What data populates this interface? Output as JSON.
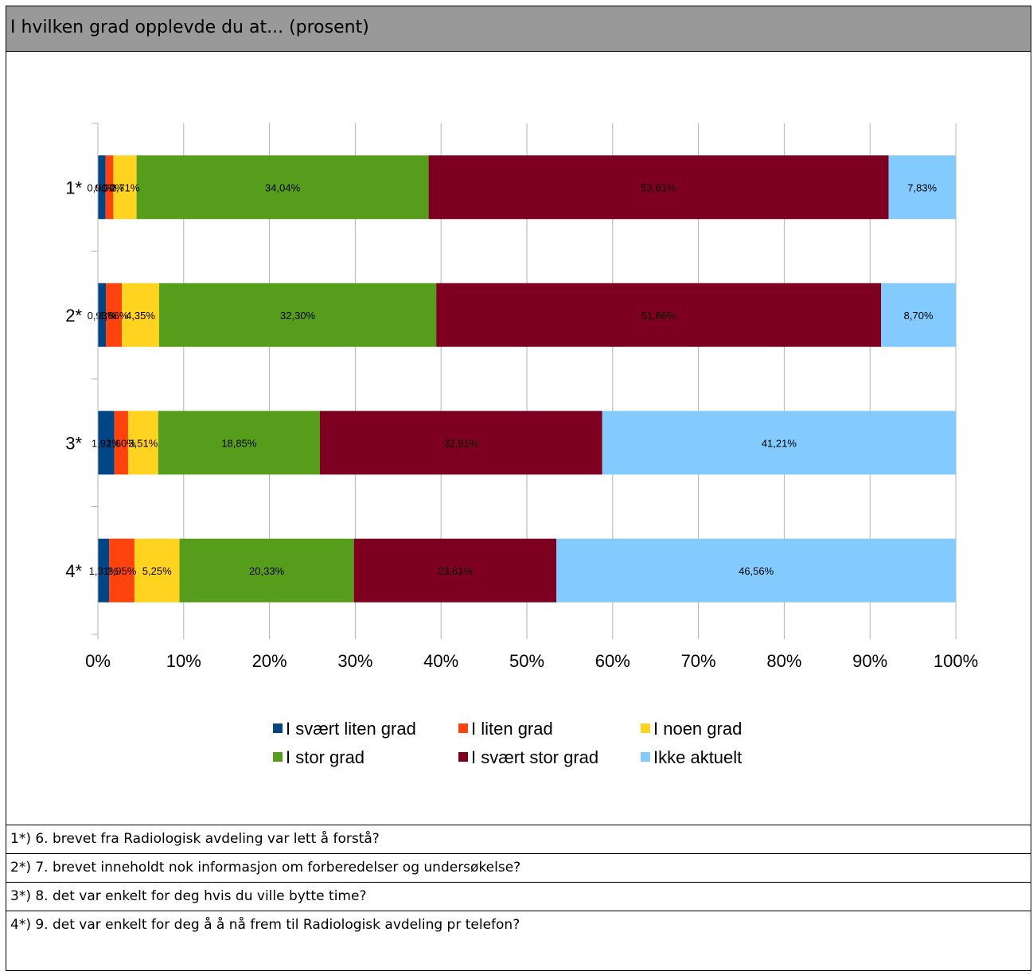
{
  "panel": {
    "title": "I hvilken grad opplevde du at... (prosent)"
  },
  "chart_data": {
    "type": "bar",
    "orientation": "horizontal",
    "stacked": "percent",
    "categories": [
      "1*",
      "2*",
      "3*",
      "4*"
    ],
    "series": [
      {
        "name": "I svært liten grad",
        "color": "#004586",
        "values": [
          0.9,
          0.93,
          1.92,
          1.31
        ],
        "labels": [
          "0,90%",
          "0,93%",
          "1,92%",
          "1,31%"
        ]
      },
      {
        "name": "I liten grad",
        "color": "#ff420e",
        "values": [
          0.9,
          1.86,
          1.6,
          2.95
        ],
        "labels": [
          "0,90%",
          "1,86%",
          "1,60%",
          "2,95%"
        ]
      },
      {
        "name": "I noen grad",
        "color": "#ffd320",
        "values": [
          2.71,
          4.35,
          3.51,
          5.25
        ],
        "labels": [
          "2,71%",
          "4,35%",
          "3,51%",
          "5,25%"
        ]
      },
      {
        "name": "I stor grad",
        "color": "#579d1c",
        "values": [
          34.04,
          32.3,
          18.85,
          20.33
        ],
        "labels": [
          "34,04%",
          "32,30%",
          "18,85%",
          "20,33%"
        ]
      },
      {
        "name": "I svært stor grad",
        "color": "#7e0021",
        "values": [
          53.61,
          51.86,
          32.91,
          23.61
        ],
        "labels": [
          "53,61%",
          "51,86%",
          "32,91%",
          "23,61%"
        ]
      },
      {
        "name": "Ikke aktuelt",
        "color": "#83caff",
        "values": [
          7.83,
          8.7,
          41.21,
          46.56
        ],
        "labels": [
          "7,83%",
          "8,70%",
          "41,21%",
          "46,56%"
        ]
      }
    ],
    "xlim": [
      0,
      100
    ],
    "xticks": [
      "0%",
      "10%",
      "20%",
      "30%",
      "40%",
      "50%",
      "60%",
      "70%",
      "80%",
      "90%",
      "100%"
    ],
    "grid": true,
    "legend": "bottom"
  },
  "notes": [
    "1*) 6. brevet fra Radiologisk avdeling var lett å forstå?",
    "2*) 7. brevet inneholdt nok informasjon om forberedelser og undersøkelse?",
    "3*) 8. det var enkelt for deg hvis du ville bytte time?",
    "4*) 9. det var enkelt for deg å å nå frem til Radiologisk avdeling pr telefon?"
  ]
}
